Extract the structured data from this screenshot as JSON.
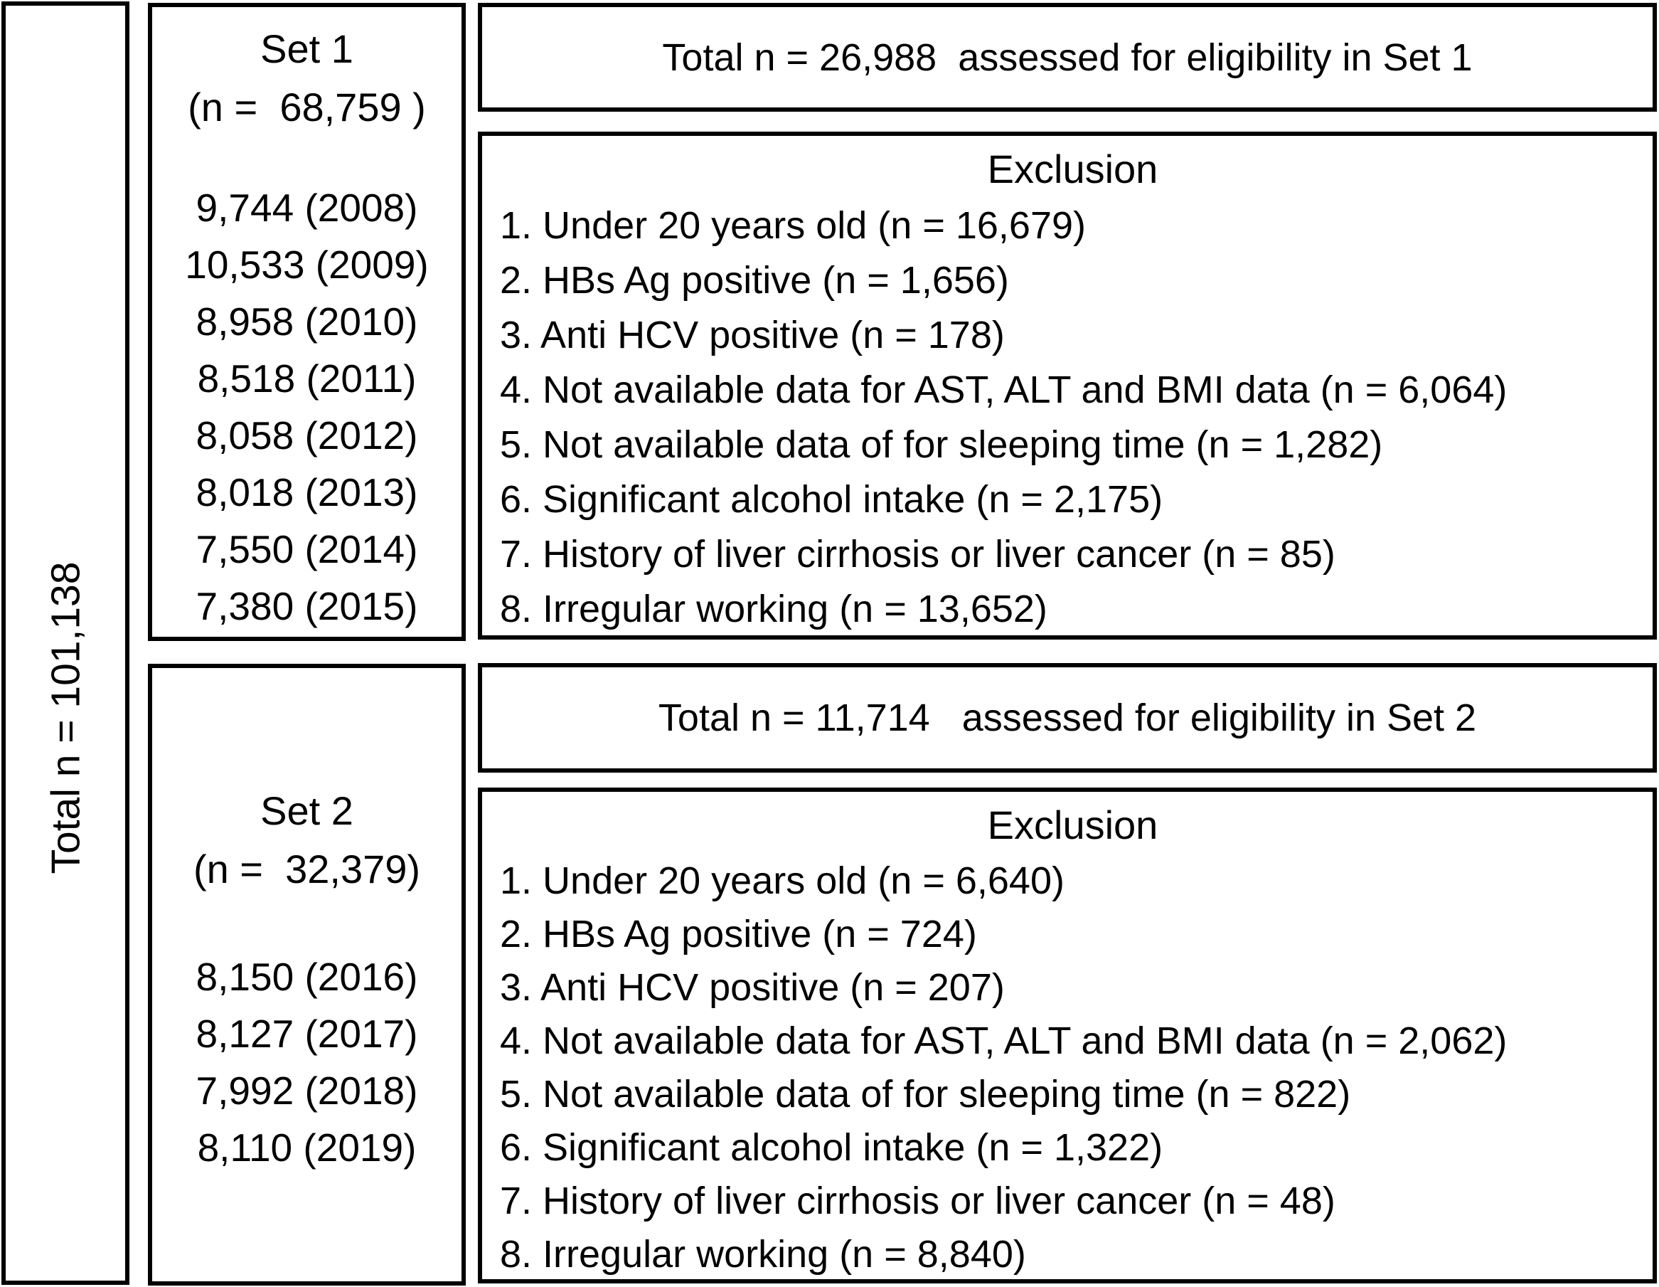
{
  "colors": {
    "border": "#000000",
    "background": "#ffffff",
    "text": "#000000"
  },
  "diagram": {
    "total_box": {
      "label": "Total n = 101,138"
    },
    "set1_box": {
      "title": "Set 1",
      "subtitle": "(n =  68,759 )",
      "years": [
        "9,744 (2008)",
        "10,533 (2009)",
        "8,958 (2010)",
        "8,518 (2011)",
        "8,058 (2012)",
        "8,018 (2013)",
        "7,550 (2014)",
        "7,380 (2015)"
      ]
    },
    "set2_box": {
      "title": "Set 2",
      "subtitle": "(n =  32,379)",
      "years": [
        "8,150 (2016)",
        "8,127 (2017)",
        "7,992 (2018)",
        "8,110 (2019)"
      ]
    },
    "set1_eligibility": {
      "label": "Total n = 26,988  assessed for eligibility in Set 1"
    },
    "set1_exclusion": {
      "title": "Exclusion",
      "items": [
        "1. Under 20 years old (n = 16,679)",
        "2. HBs Ag positive (n = 1,656)",
        "3. Anti HCV positive (n = 178)",
        "4. Not available data for AST, ALT and BMI data (n = 6,064)",
        "5. Not available data of for sleeping time (n = 1,282)",
        "6. Significant alcohol intake (n = 2,175)",
        "7. History of liver cirrhosis or liver cancer (n = 85)",
        "8. Irregular working (n = 13,652)"
      ]
    },
    "set2_eligibility": {
      "label": "Total n = 11,714   assessed for eligibility in Set 2"
    },
    "set2_exclusion": {
      "title": "Exclusion",
      "items": [
        "1. Under 20 years old (n = 6,640)",
        "2. HBs Ag positive (n = 724)",
        "3. Anti HCV positive (n = 207)",
        "4. Not available data for AST, ALT and BMI data (n = 2,062)",
        "5. Not available data of for sleeping time (n = 822)",
        "6. Significant alcohol intake (n = 1,322)",
        "7. History of liver cirrhosis or liver cancer (n = 48)",
        "8. Irregular working (n = 8,840)"
      ]
    }
  }
}
